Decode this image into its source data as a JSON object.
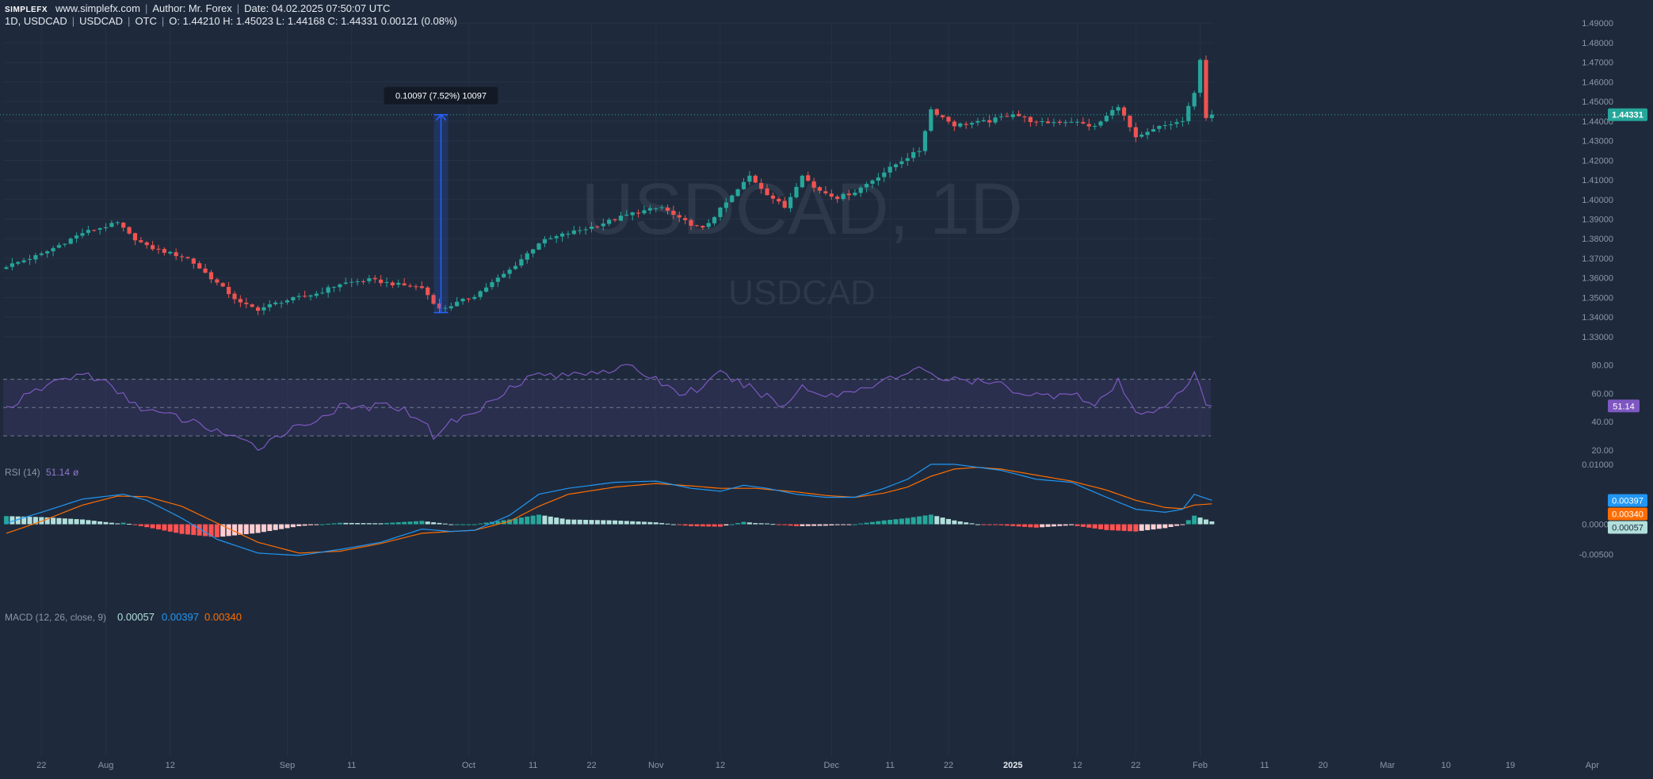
{
  "header": {
    "logo": "SIMPLEFX",
    "site": "www.simplefx.com",
    "author": "Author: Mr. Forex",
    "date": "Date: 04.02.2025 07:50:07 UTC",
    "interval_symbol": "1D, USDCAD",
    "symbol": "USDCAD",
    "market": "OTC",
    "ohlc": "O: 1.44210 H: 1.45023 L: 1.44168 C: 1.44331",
    "change": "0.00121 (0.08%)"
  },
  "watermark": {
    "big": "USDCAD, 1D",
    "small": "USDCAD"
  },
  "colors": {
    "background": "#1e2a3c",
    "up": "#26a69a",
    "down": "#ef5350",
    "rsi_line": "#7e57c2",
    "macd_line": "#2196f3",
    "signal_line": "#ff6d00",
    "hist_pos_strong": "#26a69a",
    "hist_pos_weak": "#b2dfdb",
    "hist_neg_strong": "#ff5252",
    "hist_neg_weak": "#ffcdd2",
    "price_tag": "#26a69a"
  },
  "chart_data": [
    {
      "type": "candlestick",
      "title": "USDCAD, 1D",
      "y_ticks": [
        "1.49000",
        "1.48000",
        "1.47000",
        "1.46000",
        "1.45000",
        "1.44000",
        "1.43000",
        "1.42000",
        "1.41000",
        "1.40000",
        "1.39000",
        "1.38000",
        "1.37000",
        "1.36000",
        "1.35000",
        "1.34000",
        "1.33000"
      ],
      "ylim": [
        1.3255,
        1.4905
      ],
      "last_price": "1.44331",
      "last_price_value": 1.44331,
      "measure": {
        "label": "0.10097 (7.52%) 10097",
        "from": 1.3423,
        "to": 1.4433
      },
      "close_path": [
        [
          0,
          1.366
        ],
        [
          6,
          1.372
        ],
        [
          13,
          1.383
        ],
        [
          19,
          1.388
        ],
        [
          21,
          1.382
        ],
        [
          24,
          1.376
        ],
        [
          31,
          1.37
        ],
        [
          35,
          1.36
        ],
        [
          40,
          1.347
        ],
        [
          43,
          1.344
        ],
        [
          47,
          1.348
        ],
        [
          53,
          1.352
        ],
        [
          57,
          1.357
        ],
        [
          62,
          1.359
        ],
        [
          66,
          1.357
        ],
        [
          71,
          1.355
        ],
        [
          74,
          1.344
        ],
        [
          76,
          1.346
        ],
        [
          80,
          1.351
        ],
        [
          86,
          1.364
        ],
        [
          91,
          1.378
        ],
        [
          95,
          1.382
        ],
        [
          100,
          1.386
        ],
        [
          107,
          1.393
        ],
        [
          112,
          1.396
        ],
        [
          115,
          1.39
        ],
        [
          119,
          1.385
        ],
        [
          122,
          1.395
        ],
        [
          125,
          1.405
        ],
        [
          127,
          1.412
        ],
        [
          130,
          1.403
        ],
        [
          133,
          1.396
        ],
        [
          136,
          1.413
        ],
        [
          138,
          1.406
        ],
        [
          142,
          1.401
        ],
        [
          145,
          1.404
        ],
        [
          149,
          1.412
        ],
        [
          153,
          1.42
        ],
        [
          156,
          1.425
        ],
        [
          158,
          1.446
        ],
        [
          162,
          1.438
        ],
        [
          168,
          1.44
        ],
        [
          172,
          1.444
        ],
        [
          176,
          1.439
        ],
        [
          182,
          1.44
        ],
        [
          186,
          1.437
        ],
        [
          190,
          1.448
        ],
        [
          193,
          1.431
        ],
        [
          197,
          1.437
        ],
        [
          201,
          1.44
        ],
        [
          203,
          1.454
        ],
        [
          204,
          1.472
        ],
        [
          205,
          1.442
        ],
        [
          206,
          1.4433
        ]
      ],
      "x_ticks": [
        {
          "label": "22",
          "bar": 6,
          "bold": false
        },
        {
          "label": "Aug",
          "bar": 17,
          "bold": false
        },
        {
          "label": "12",
          "bar": 28,
          "bold": false
        },
        {
          "label": "Sep",
          "bar": 48,
          "bold": false
        },
        {
          "label": "11",
          "bar": 59,
          "bold": false
        },
        {
          "label": "Oct",
          "bar": 79,
          "bold": false
        },
        {
          "label": "11",
          "bar": 90,
          "bold": false
        },
        {
          "label": "22",
          "bar": 100,
          "bold": false
        },
        {
          "label": "Nov",
          "bar": 111,
          "bold": false
        },
        {
          "label": "12",
          "bar": 122,
          "bold": false
        },
        {
          "label": "Dec",
          "bar": 141,
          "bold": false
        },
        {
          "label": "11",
          "bar": 151,
          "bold": false
        },
        {
          "label": "22",
          "bar": 161,
          "bold": false
        },
        {
          "label": "2025",
          "bar": 172,
          "bold": true
        },
        {
          "label": "12",
          "bar": 183,
          "bold": false
        },
        {
          "label": "22",
          "bar": 193,
          "bold": false
        },
        {
          "label": "Feb",
          "bar": 204,
          "bold": false
        },
        {
          "label": "11",
          "bar": 215,
          "bold": false
        },
        {
          "label": "20",
          "bar": 225,
          "bold": false
        },
        {
          "label": "Mar",
          "bar": 236,
          "bold": false
        },
        {
          "label": "10",
          "bar": 246,
          "bold": false
        },
        {
          "label": "19",
          "bar": 257,
          "bold": false
        },
        {
          "label": "Apr",
          "bar": 271,
          "bold": false
        }
      ]
    },
    {
      "type": "line",
      "title": "RSI (14)",
      "value": "51.14",
      "extra": "ø",
      "levels": [
        70,
        50,
        30
      ],
      "ylim": [
        16,
        86
      ],
      "y_ticks": [
        "80.00",
        "60.00",
        "40.00",
        "20.00"
      ],
      "path": [
        [
          0,
          50
        ],
        [
          8,
          68
        ],
        [
          13,
          74
        ],
        [
          16,
          70
        ],
        [
          20,
          58
        ],
        [
          24,
          48
        ],
        [
          30,
          42
        ],
        [
          36,
          34
        ],
        [
          40,
          26
        ],
        [
          43,
          22
        ],
        [
          47,
          32
        ],
        [
          52,
          40
        ],
        [
          57,
          50
        ],
        [
          62,
          50
        ],
        [
          66,
          52
        ],
        [
          71,
          42
        ],
        [
          73,
          30
        ],
        [
          76,
          40
        ],
        [
          80,
          46
        ],
        [
          86,
          65
        ],
        [
          91,
          74
        ],
        [
          95,
          72
        ],
        [
          100,
          76
        ],
        [
          107,
          78
        ],
        [
          111,
          70
        ],
        [
          115,
          60
        ],
        [
          119,
          64
        ],
        [
          122,
          74
        ],
        [
          126,
          66
        ],
        [
          130,
          58
        ],
        [
          133,
          50
        ],
        [
          136,
          66
        ],
        [
          140,
          58
        ],
        [
          145,
          62
        ],
        [
          150,
          70
        ],
        [
          154,
          72
        ],
        [
          156,
          80
        ],
        [
          160,
          70
        ],
        [
          166,
          68
        ],
        [
          170,
          66
        ],
        [
          174,
          60
        ],
        [
          178,
          58
        ],
        [
          182,
          62
        ],
        [
          186,
          50
        ],
        [
          190,
          68
        ],
        [
          193,
          45
        ],
        [
          197,
          50
        ],
        [
          201,
          60
        ],
        [
          203,
          75
        ],
        [
          205,
          51
        ],
        [
          206,
          51.14
        ]
      ]
    },
    {
      "type": "macd",
      "title": "MACD (12, 26, close, 9)",
      "values": {
        "histogram": "0.00057",
        "macd": "0.00397",
        "signal": "0.00340"
      },
      "ylim": [
        -0.0064,
        0.0121
      ],
      "y_ticks": [
        "0.01000",
        "0.00000",
        "-0.00500"
      ],
      "macd_path": [
        [
          0,
          0.0002
        ],
        [
          6,
          0.002
        ],
        [
          13,
          0.0042
        ],
        [
          20,
          0.005
        ],
        [
          24,
          0.004
        ],
        [
          30,
          0.001
        ],
        [
          36,
          -0.0025
        ],
        [
          43,
          -0.0048
        ],
        [
          50,
          -0.0052
        ],
        [
          57,
          -0.0042
        ],
        [
          64,
          -0.003
        ],
        [
          71,
          -0.0008
        ],
        [
          76,
          -0.0012
        ],
        [
          80,
          -0.001
        ],
        [
          86,
          0.0015
        ],
        [
          91,
          0.005
        ],
        [
          96,
          0.006
        ],
        [
          104,
          0.007
        ],
        [
          111,
          0.0072
        ],
        [
          117,
          0.006
        ],
        [
          122,
          0.0055
        ],
        [
          126,
          0.0065
        ],
        [
          130,
          0.006
        ],
        [
          135,
          0.005
        ],
        [
          140,
          0.0045
        ],
        [
          145,
          0.0045
        ],
        [
          150,
          0.006
        ],
        [
          154,
          0.0075
        ],
        [
          158,
          0.01
        ],
        [
          162,
          0.01
        ],
        [
          166,
          0.0095
        ],
        [
          170,
          0.009
        ],
        [
          176,
          0.0075
        ],
        [
          182,
          0.007
        ],
        [
          188,
          0.0045
        ],
        [
          193,
          0.0025
        ],
        [
          198,
          0.002
        ],
        [
          201,
          0.0025
        ],
        [
          203,
          0.005
        ],
        [
          206,
          0.004
        ]
      ],
      "signal_path": [
        [
          0,
          -0.0015
        ],
        [
          6,
          0.0005
        ],
        [
          13,
          0.0032
        ],
        [
          19,
          0.0047
        ],
        [
          24,
          0.0046
        ],
        [
          30,
          0.003
        ],
        [
          36,
          0.0002
        ],
        [
          43,
          -0.003
        ],
        [
          50,
          -0.0048
        ],
        [
          57,
          -0.0045
        ],
        [
          64,
          -0.0032
        ],
        [
          71,
          -0.0015
        ],
        [
          76,
          -0.0012
        ],
        [
          80,
          -0.001
        ],
        [
          86,
          0.0005
        ],
        [
          91,
          0.003
        ],
        [
          96,
          0.005
        ],
        [
          104,
          0.0062
        ],
        [
          111,
          0.0068
        ],
        [
          117,
          0.0064
        ],
        [
          122,
          0.006
        ],
        [
          128,
          0.006
        ],
        [
          135,
          0.0054
        ],
        [
          140,
          0.0048
        ],
        [
          145,
          0.0045
        ],
        [
          150,
          0.0052
        ],
        [
          154,
          0.0062
        ],
        [
          158,
          0.008
        ],
        [
          162,
          0.0092
        ],
        [
          166,
          0.0095
        ],
        [
          170,
          0.0092
        ],
        [
          176,
          0.0082
        ],
        [
          182,
          0.0072
        ],
        [
          188,
          0.0057
        ],
        [
          193,
          0.004
        ],
        [
          198,
          0.0028
        ],
        [
          201,
          0.0026
        ],
        [
          203,
          0.0032
        ],
        [
          206,
          0.0034
        ]
      ]
    }
  ]
}
